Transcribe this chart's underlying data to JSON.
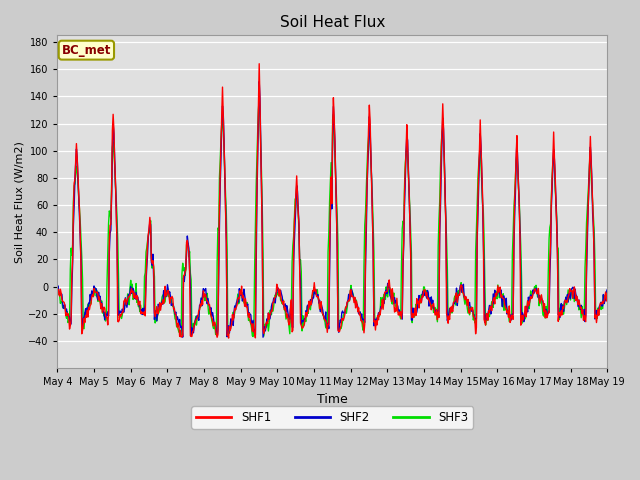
{
  "title": "Soil Heat Flux",
  "xlabel": "Time",
  "ylabel": "Soil Heat Flux (W/m2)",
  "ylim": [
    -60,
    185
  ],
  "yticks": [
    -40,
    -20,
    0,
    20,
    40,
    60,
    80,
    100,
    120,
    140,
    160,
    180
  ],
  "background_color": "#cccccc",
  "plot_bg_color": "#e0e0e0",
  "shf1_color": "#ff0000",
  "shf2_color": "#0000cc",
  "shf3_color": "#00dd00",
  "legend_label1": "SHF1",
  "legend_label2": "SHF2",
  "legend_label3": "SHF3",
  "site_label": "BC_met",
  "line_width": 1.0,
  "figsize": [
    6.4,
    4.8
  ],
  "dpi": 100,
  "start_day": 4,
  "num_days": 15,
  "pts_per_day": 48
}
